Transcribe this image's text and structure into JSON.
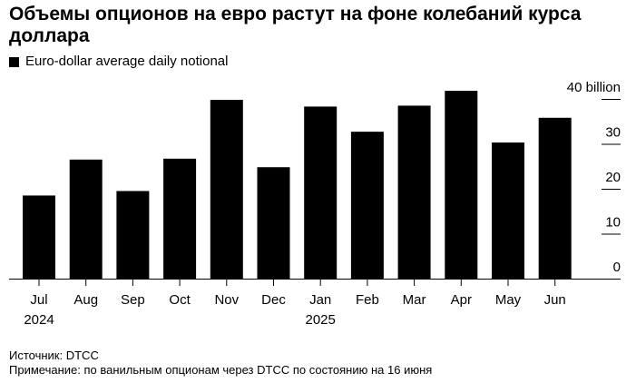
{
  "title": "Объемы опционов на евро растут на фоне колебаний курса доллара",
  "legend": {
    "label": "Euro-dollar average daily notional",
    "color": "#000000"
  },
  "source": "Источник: DTCC",
  "note": "Примечание: по ванильным опционам через DTCC по состоянию на 16 июня",
  "chart_data": {
    "type": "bar",
    "categories": [
      "Jul",
      "Aug",
      "Sep",
      "Oct",
      "Nov",
      "Dec",
      "Jan",
      "Feb",
      "Mar",
      "Apr",
      "May",
      "Jun"
    ],
    "year_labels": [
      "2024",
      "",
      "",
      "",
      "",
      "",
      "2025",
      "",
      "",
      "",
      "",
      ""
    ],
    "series": [
      {
        "name": "Euro-dollar average daily notional",
        "values": [
          18.5,
          26.5,
          19.5,
          26.7,
          39.8,
          24.8,
          38.3,
          32.7,
          38.5,
          41.8,
          30.3,
          35.8
        ]
      }
    ],
    "yticks": [
      {
        "value": 0,
        "label": "0"
      },
      {
        "value": 10,
        "label": "10"
      },
      {
        "value": 20,
        "label": "20"
      },
      {
        "value": 30,
        "label": "30"
      },
      {
        "value": 40,
        "label": "40 billion"
      }
    ],
    "ylim": [
      0,
      42
    ],
    "bar_color": "#000000",
    "axis_side": "right",
    "grid": false
  }
}
